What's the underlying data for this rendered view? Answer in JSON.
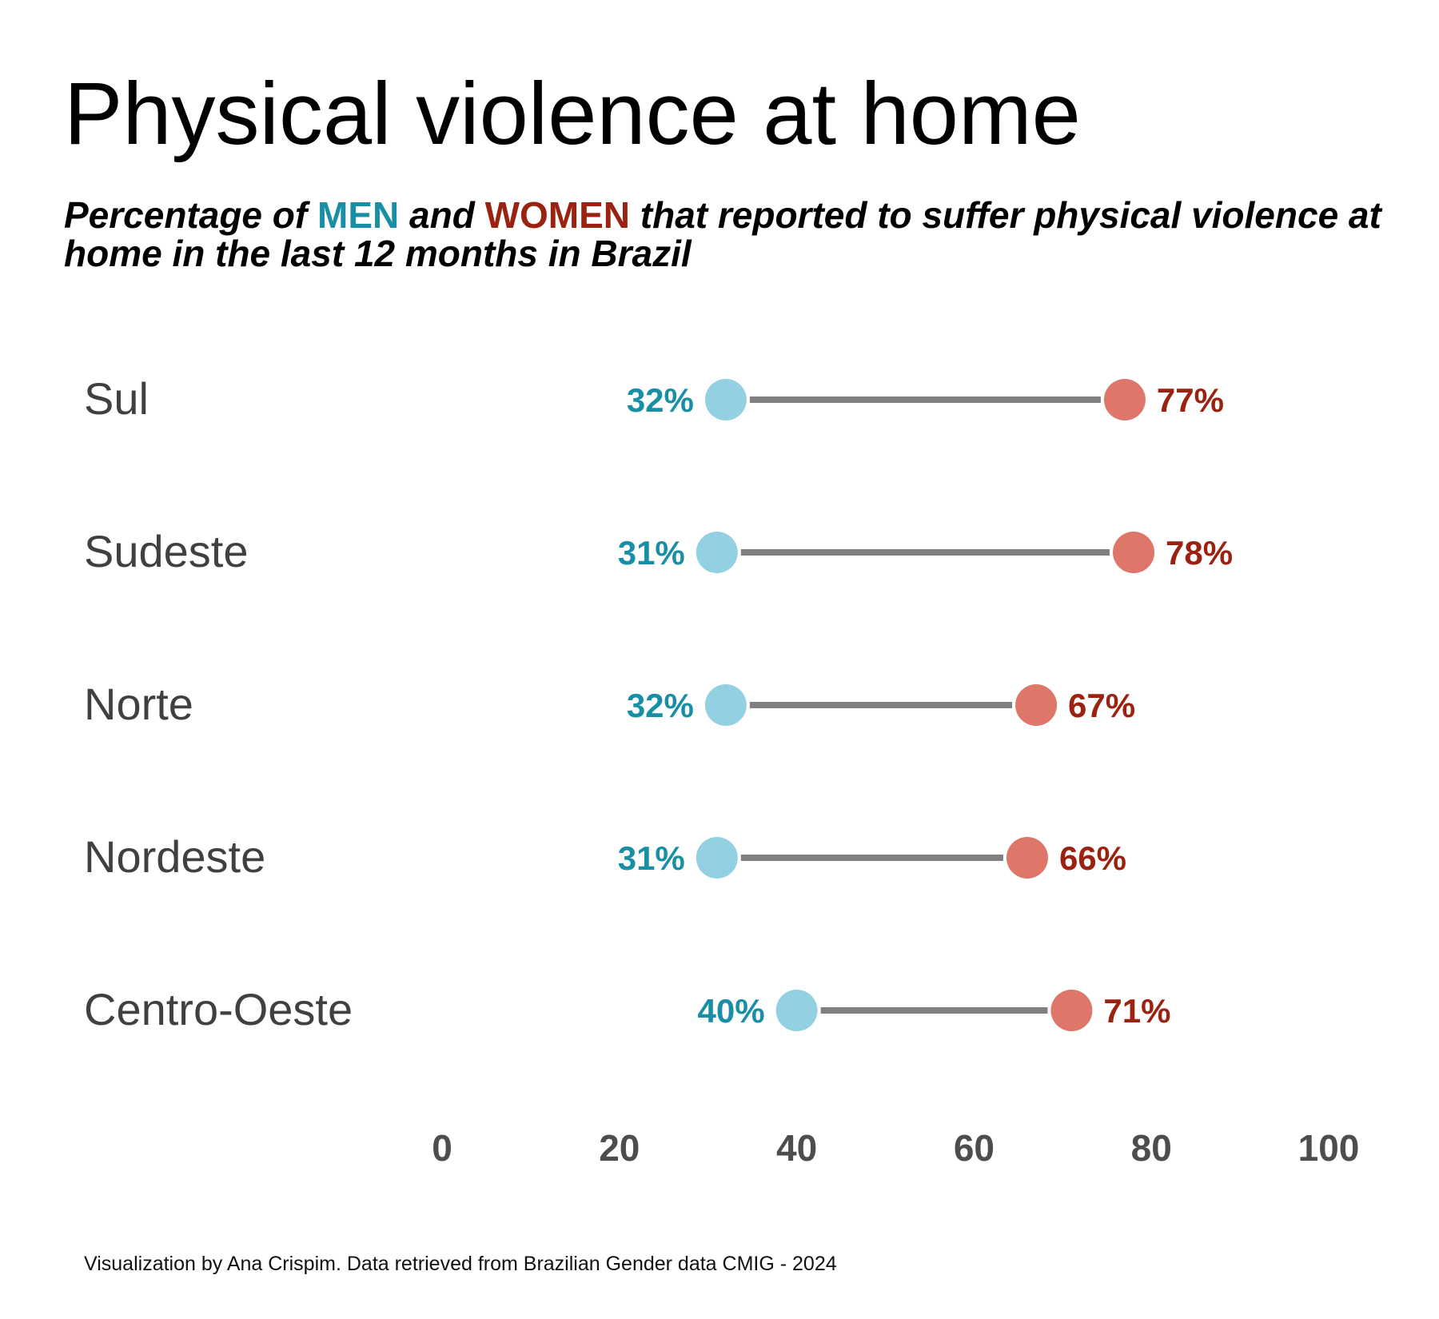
{
  "title": "Physical violence at home",
  "subtitle": {
    "prefix": "Percentage of",
    "men_word": "MEN",
    "and_word": "and",
    "women_word": "WOMEN",
    "suffix": "that reported to suffer physical violence at home in the last 12 months in Brazil"
  },
  "caption": "Visualization by Ana Crispim. Data retrieved from Brazilian Gender data CMIG - 2024",
  "colors": {
    "men_dot": "#92d0e2",
    "men_label": "#198fa5",
    "women_dot": "#df766a",
    "women_label": "#9b2210",
    "segment": "#808080",
    "category_label": "#404040",
    "tick_label": "#4d4d4d"
  },
  "chart_data": {
    "type": "dumbbell",
    "categories": [
      "Sul",
      "Sudeste",
      "Norte",
      "Nordeste",
      "Centro-Oeste"
    ],
    "series": [
      {
        "name": "MEN",
        "values": [
          32,
          31,
          32,
          31,
          40
        ],
        "labels": [
          "32%",
          "31%",
          "32%",
          "31%",
          "40%"
        ]
      },
      {
        "name": "WOMEN",
        "values": [
          77,
          78,
          67,
          66,
          71
        ],
        "labels": [
          "77%",
          "78%",
          "67%",
          "66%",
          "71%"
        ]
      }
    ],
    "xlim": [
      0,
      100
    ],
    "xticks": [
      0,
      20,
      40,
      60,
      80,
      100
    ],
    "grid": false,
    "legend": "none (colors explained in subtitle)"
  }
}
